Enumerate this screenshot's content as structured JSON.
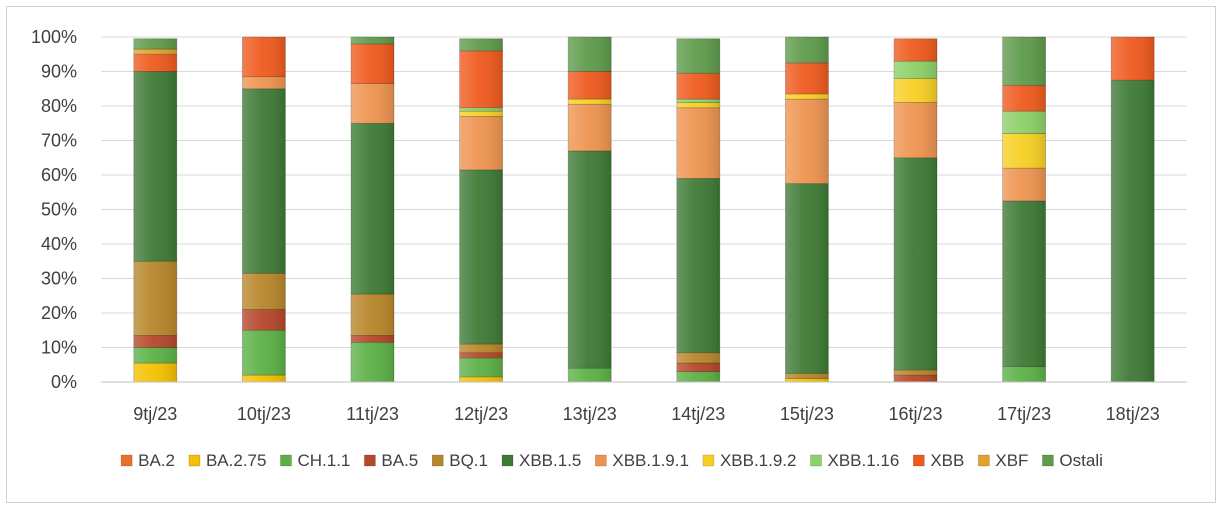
{
  "chart_data": {
    "type": "bar",
    "stacked": true,
    "percent_stacked": true,
    "categories": [
      "9tj/23",
      "10tj/23",
      "11tj/23",
      "12tj/23",
      "13tj/23",
      "14tj/23",
      "15tj/23",
      "16tj/23",
      "17tj/23",
      "18tj/23"
    ],
    "ylim": [
      0,
      100
    ],
    "yticks": [
      "0%",
      "10%",
      "20%",
      "30%",
      "40%",
      "50%",
      "60%",
      "70%",
      "80%",
      "90%",
      "100%"
    ],
    "grid": true,
    "legend_position": "bottom",
    "series": [
      {
        "name": "BA.2",
        "color": "#E8722A",
        "values": [
          0,
          0,
          0,
          0,
          0,
          0,
          0,
          0,
          0,
          0
        ]
      },
      {
        "name": "BA.2.75",
        "color": "#F5C000",
        "values": [
          5.5,
          2,
          0,
          1.5,
          0,
          0,
          1,
          0,
          0,
          0
        ]
      },
      {
        "name": "CH.1.1",
        "color": "#5CB046",
        "values": [
          4.5,
          13,
          11.5,
          5.5,
          4,
          3,
          0,
          0,
          4.5,
          0
        ]
      },
      {
        "name": "BA.5",
        "color": "#B5472A",
        "values": [
          3.5,
          6,
          2,
          1.5,
          0,
          2.5,
          0,
          2,
          0,
          0
        ]
      },
      {
        "name": "BQ.1",
        "color": "#B8862A",
        "values": [
          21.5,
          10.5,
          12,
          2.5,
          0,
          3,
          1.5,
          1.5,
          0,
          0
        ]
      },
      {
        "name": "XBB.1.5",
        "color": "#3E7A35",
        "values": [
          55,
          53.5,
          49.5,
          50.5,
          63,
          50.5,
          55,
          61.5,
          48,
          87.5
        ]
      },
      {
        "name": "XBB.1.9.1",
        "color": "#EE9450",
        "values": [
          0,
          3.5,
          11.5,
          15.5,
          13.5,
          20.5,
          24.5,
          16,
          9.5,
          0
        ]
      },
      {
        "name": "XBB.1.9.2",
        "color": "#F7D024",
        "values": [
          0,
          0,
          0,
          1.5,
          1.5,
          1.5,
          1.5,
          7,
          10,
          0
        ]
      },
      {
        "name": "XBB.1.16",
        "color": "#8DD068",
        "values": [
          0,
          0,
          0,
          1,
          0,
          1,
          0,
          5,
          6.5,
          0
        ]
      },
      {
        "name": "XBB",
        "color": "#EF5A1E",
        "values": [
          5,
          11.5,
          11.5,
          16.5,
          8,
          7.5,
          9,
          6.5,
          7.5,
          12.5
        ]
      },
      {
        "name": "XBF",
        "color": "#E0A22C",
        "values": [
          1.5,
          0,
          0,
          0,
          0,
          0,
          0,
          0,
          0,
          0
        ]
      },
      {
        "name": "Ostali",
        "color": "#5E9B4B",
        "values": [
          3,
          0,
          2,
          3.5,
          10,
          10,
          7.5,
          0,
          14,
          0
        ]
      }
    ]
  }
}
